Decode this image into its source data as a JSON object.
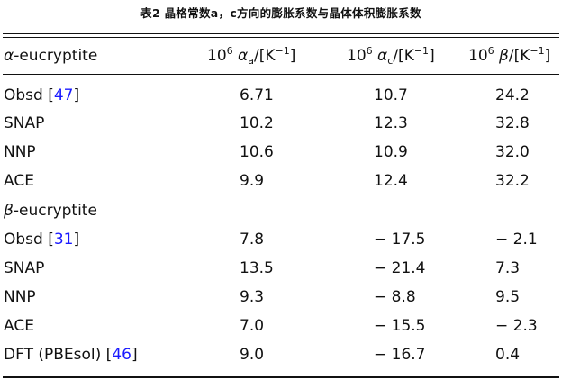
{
  "caption": "表2 晶格常数a，c方向的膨胀系数与晶体体积膨胀系数",
  "header": {
    "col0_symbol": "α",
    "col0_text": "-eucryptite",
    "col1": {
      "prefix": "10",
      "exp": "6",
      "sym": "α",
      "sub": "a",
      "unit_pre": "/[K",
      "unit_exp": "−1",
      "unit_post": "]"
    },
    "col2": {
      "prefix": "10",
      "exp": "6",
      "sym": "α",
      "sub": "c",
      "unit_pre": "/[K",
      "unit_exp": "−1",
      "unit_post": "]"
    },
    "col3": {
      "prefix": "10",
      "exp": "6",
      "sym": "β",
      "unit_pre": "/[K",
      "unit_exp": "−1",
      "unit_post": "]"
    }
  },
  "rows": [
    {
      "label": "Obsd [",
      "ref": "47",
      "label_end": "]",
      "a": "6.71",
      "c": "10.7",
      "v": "24.2"
    },
    {
      "label": "SNAP",
      "a": "10.2",
      "c": "12.3",
      "v": "32.8"
    },
    {
      "label": "NNP",
      "a": "10.6",
      "c": "10.9",
      "v": "32.0"
    },
    {
      "label": "ACE",
      "a": "9.9",
      "c": "12.4",
      "v": "32.2"
    },
    {
      "section_symbol": "β",
      "section_text": "-eucryptite"
    },
    {
      "label": "Obsd [",
      "ref": "31",
      "label_end": "]",
      "a": "7.8",
      "c": "− 17.5",
      "v": "− 2.1"
    },
    {
      "label": "SNAP",
      "a": "13.5",
      "c": "− 21.4",
      "v": "7.3"
    },
    {
      "label": "NNP",
      "a": "9.3",
      "c": "− 8.8",
      "v": "9.5"
    },
    {
      "label": "ACE",
      "a": "7.0",
      "c": "− 15.5",
      "v": "− 2.3"
    },
    {
      "label": "DFT (PBEsol) [",
      "ref": "46",
      "label_end": "]",
      "a": "9.0",
      "c": "− 16.7",
      "v": "0.4"
    }
  ]
}
